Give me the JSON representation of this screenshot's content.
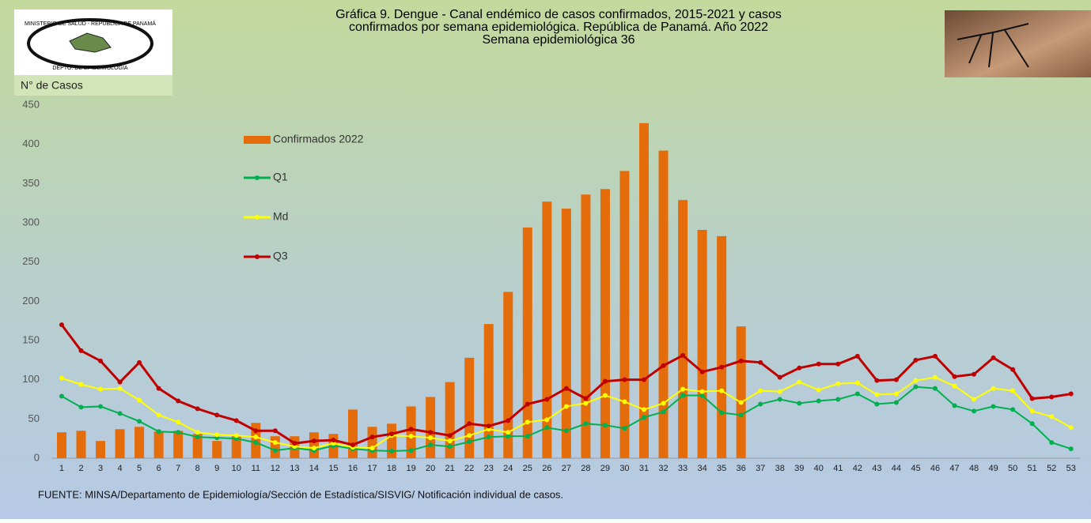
{
  "logo": {
    "top_text": "MINISTERIO DE SALUD - REPÚBLICA DE PANAMÁ",
    "bottom_text": "DEPTO. DE EPIDEMIOLOGÍA"
  },
  "chart_data": {
    "type": "combo",
    "title": [
      "Gráfica 9. Dengue - Canal endémico de casos confirmados, 2015-2021 y casos",
      "confirmados por semana epidemiológica. República de Panamá. Año 2022",
      "Semana epidemiológica 36"
    ],
    "y_label": "N° de Casos",
    "source": "FUENTE:  MINSA/Departamento  de Epidemiología/Sección de Estadística/SISVIG/ Notificación individual de casos.",
    "categories": [
      "1",
      "2",
      "3",
      "4",
      "5",
      "6",
      "7",
      "8",
      "9",
      "10",
      "11",
      "12",
      "13",
      "14",
      "15",
      "16",
      "17",
      "18",
      "19",
      "20",
      "21",
      "22",
      "23",
      "24",
      "25",
      "26",
      "27",
      "28",
      "29",
      "30",
      "31",
      "32",
      "33",
      "34",
      "35",
      "36",
      "37",
      "38",
      "39",
      "40",
      "41",
      "42",
      "43",
      "44",
      "45",
      "46",
      "47",
      "48",
      "49",
      "50",
      "51",
      "52",
      "53"
    ],
    "ylim": [
      0,
      450
    ],
    "yticks": [
      0,
      50,
      100,
      150,
      200,
      250,
      300,
      350,
      400,
      450
    ],
    "grid": false,
    "legend": "inside-left",
    "series": [
      {
        "name": "Confirmados 2022",
        "type": "bar",
        "color": "#e46c0a",
        "values": [
          33,
          35,
          22,
          37,
          40,
          34,
          35,
          31,
          22,
          28,
          45,
          28,
          28,
          33,
          31,
          62,
          40,
          44,
          66,
          78,
          97,
          128,
          171,
          212,
          294,
          327,
          318,
          336,
          343,
          366,
          427,
          392,
          329,
          291,
          283,
          168,
          null,
          null,
          null,
          null,
          null,
          null,
          null,
          null,
          null,
          null,
          null,
          null,
          null,
          null,
          null,
          null,
          null
        ]
      },
      {
        "name": "Q1",
        "type": "line",
        "color": "#00b050",
        "values": [
          79,
          65,
          66,
          57,
          47,
          34,
          33,
          27,
          26,
          25,
          20,
          10,
          13,
          10,
          16,
          12,
          10,
          9,
          10,
          17,
          15,
          21,
          27,
          28,
          28,
          39,
          35,
          44,
          42,
          38,
          52,
          59,
          80,
          80,
          58,
          55,
          69,
          75,
          70,
          73,
          75,
          82,
          69,
          71,
          91,
          89,
          67,
          60,
          66,
          62,
          44,
          20,
          12
        ]
      },
      {
        "name": "Md",
        "type": "line",
        "color": "#ffff00",
        "values": [
          102,
          94,
          88,
          89,
          74,
          55,
          46,
          33,
          30,
          29,
          27,
          20,
          15,
          13,
          19,
          14,
          13,
          29,
          28,
          26,
          22,
          29,
          37,
          33,
          46,
          49,
          66,
          70,
          80,
          72,
          62,
          70,
          88,
          85,
          86,
          71,
          86,
          85,
          97,
          87,
          95,
          96,
          81,
          82,
          99,
          103,
          92,
          75,
          89,
          86,
          60,
          53,
          39
        ]
      },
      {
        "name": "Q3",
        "type": "line",
        "color": "#c00000",
        "values": [
          170,
          137,
          124,
          97,
          122,
          89,
          73,
          63,
          55,
          48,
          35,
          35,
          19,
          22,
          23,
          17,
          27,
          31,
          37,
          33,
          29,
          44,
          41,
          48,
          69,
          75,
          89,
          76,
          98,
          100,
          100,
          118,
          131,
          110,
          116,
          124,
          122,
          103,
          115,
          120,
          120,
          130,
          99,
          100,
          125,
          130,
          104,
          107,
          128,
          113,
          76,
          78,
          82
        ]
      }
    ]
  }
}
